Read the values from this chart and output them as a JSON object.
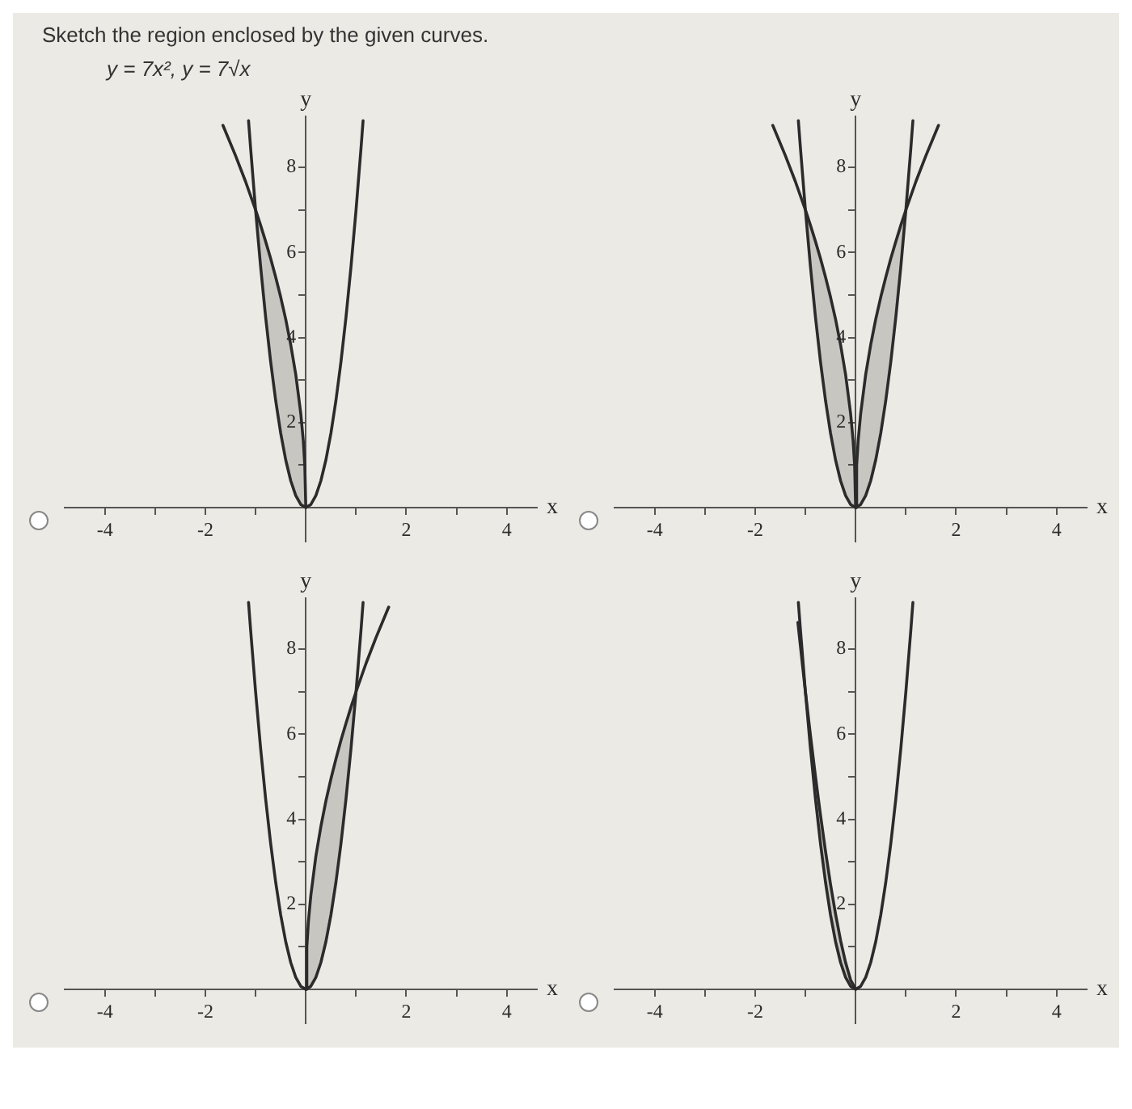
{
  "chart_data": [
    {
      "type": "line",
      "title": "Sketch the region enclosed by the given curves.",
      "subtitle": "y = 7x², y = 7√x",
      "xlabel": "x",
      "ylabel": "y",
      "xlim": [
        -4.8,
        4.6
      ],
      "ylim": [
        -0.8,
        9.2
      ],
      "xticks": [
        -4,
        {
          "value": -3,
          "label": null
        },
        -2,
        {
          "value": -1,
          "label": null
        },
        {
          "value": 1,
          "label": null
        },
        2,
        {
          "value": 3,
          "label": null
        },
        4
      ],
      "yticks": [
        {
          "value": 1,
          "label": null
        },
        2,
        {
          "value": 3,
          "label": null
        },
        4,
        {
          "value": 5,
          "label": null
        },
        6,
        {
          "value": 7,
          "label": null
        },
        8
      ],
      "series": [
        {
          "color": "#2b2b2b",
          "x": [
            -1.14,
            -1.1,
            -1,
            -0.9,
            -0.8,
            -0.7,
            -0.6,
            -0.5,
            -0.4,
            -0.3,
            -0.2,
            -0.1,
            0,
            0.1,
            0.2,
            0.3,
            0.4,
            0.5,
            0.6,
            0.7,
            0.8,
            0.9,
            1,
            1.1,
            1.14
          ],
          "values": [
            9.1,
            8.47,
            7,
            5.67,
            4.48,
            3.43,
            2.52,
            1.75,
            1.12,
            0.63,
            0.28,
            0.07,
            0,
            0.07,
            0.28,
            0.63,
            1.12,
            1.75,
            2.52,
            3.43,
            4.48,
            5.67,
            7,
            8.47,
            9.1
          ]
        },
        {
          "color": "#2b2b2b",
          "x": [
            -1.65,
            -1.4,
            -1.2,
            -1,
            -0.9,
            -0.8,
            -0.7,
            -0.6,
            -0.5,
            -0.4,
            -0.3,
            -0.2,
            -0.1,
            -0.05,
            -0.02,
            0
          ],
          "values": [
            8.99,
            8.28,
            7.67,
            7,
            6.64,
            6.26,
            5.86,
            5.42,
            4.95,
            4.43,
            3.83,
            3.13,
            2.21,
            1.57,
            0.99,
            0
          ],
          "lower": [
            null,
            null,
            null,
            7,
            5.67,
            4.48,
            3.43,
            2.52,
            1.75,
            1.12,
            0.63,
            0.28,
            0.07,
            0.02,
            0,
            0
          ],
          "upper": [
            null,
            null,
            null,
            7,
            6.64,
            6.26,
            5.86,
            5.42,
            4.95,
            4.43,
            3.83,
            3.13,
            2.21,
            1.57,
            0.99,
            0
          ]
        }
      ]
    },
    {
      "type": "line",
      "xlabel": "x",
      "ylabel": "y",
      "xlim": [
        -4.8,
        4.6
      ],
      "ylim": [
        -0.8,
        9.2
      ],
      "xticks": [
        -4,
        {
          "value": -3,
          "label": null
        },
        -2,
        {
          "value": -1,
          "label": null
        },
        {
          "value": 1,
          "label": null
        },
        2,
        {
          "value": 3,
          "label": null
        },
        4
      ],
      "yticks": [
        {
          "value": 1,
          "label": null
        },
        2,
        {
          "value": 3,
          "label": null
        },
        4,
        {
          "value": 5,
          "label": null
        },
        6,
        {
          "value": 7,
          "label": null
        },
        8
      ],
      "series": [
        {
          "color": "#2b2b2b",
          "x": [
            -1.14,
            -1.1,
            -1,
            -0.9,
            -0.8,
            -0.7,
            -0.6,
            -0.5,
            -0.4,
            -0.3,
            -0.2,
            -0.1,
            0,
            0.1,
            0.2,
            0.3,
            0.4,
            0.5,
            0.6,
            0.7,
            0.8,
            0.9,
            1,
            1.1,
            1.14
          ],
          "values": [
            9.1,
            8.47,
            7,
            5.67,
            4.48,
            3.43,
            2.52,
            1.75,
            1.12,
            0.63,
            0.28,
            0.07,
            0,
            0.07,
            0.28,
            0.63,
            1.12,
            1.75,
            2.52,
            3.43,
            4.48,
            5.67,
            7,
            8.47,
            9.1
          ]
        },
        {
          "color": "#2b2b2b",
          "x": [
            -1.65,
            -1.4,
            -1.2,
            -1,
            -0.9,
            -0.8,
            -0.7,
            -0.6,
            -0.5,
            -0.4,
            -0.3,
            -0.2,
            -0.1,
            -0.05,
            -0.02,
            0
          ],
          "values": [
            8.99,
            8.28,
            7.67,
            7,
            6.64,
            6.26,
            5.86,
            5.42,
            4.95,
            4.43,
            3.83,
            3.13,
            2.21,
            1.57,
            0.99,
            0
          ],
          "lower": [
            null,
            null,
            null,
            7,
            5.67,
            4.48,
            3.43,
            2.52,
            1.75,
            1.12,
            0.63,
            0.28,
            0.07,
            0.02,
            0,
            0
          ],
          "upper": [
            null,
            null,
            null,
            7,
            6.64,
            6.26,
            5.86,
            5.42,
            4.95,
            4.43,
            3.83,
            3.13,
            2.21,
            1.57,
            0.99,
            0
          ]
        },
        {
          "color": "#2b2b2b",
          "x": [
            0,
            0.02,
            0.05,
            0.1,
            0.2,
            0.3,
            0.4,
            0.5,
            0.6,
            0.7,
            0.8,
            0.9,
            1,
            1.2,
            1.4,
            1.65
          ],
          "values": [
            0,
            0.99,
            1.57,
            2.21,
            3.13,
            3.83,
            4.43,
            4.95,
            5.42,
            5.86,
            6.26,
            6.64,
            7,
            7.67,
            8.28,
            8.99
          ],
          "lower": [
            0,
            0,
            0.02,
            0.07,
            0.28,
            0.63,
            1.12,
            1.75,
            2.52,
            3.43,
            4.48,
            5.67,
            7,
            null,
            null,
            null
          ],
          "upper": [
            0,
            0.99,
            1.57,
            2.21,
            3.13,
            3.83,
            4.43,
            4.95,
            5.42,
            5.86,
            6.26,
            6.64,
            7,
            null,
            null,
            null
          ]
        }
      ]
    },
    {
      "type": "line",
      "xlabel": "x",
      "ylabel": "y",
      "xlim": [
        -4.8,
        4.6
      ],
      "ylim": [
        -0.8,
        9.2
      ],
      "xticks": [
        -4,
        {
          "value": -3,
          "label": null
        },
        -2,
        {
          "value": -1,
          "label": null
        },
        {
          "value": 1,
          "label": null
        },
        2,
        {
          "value": 3,
          "label": null
        },
        4
      ],
      "yticks": [
        {
          "value": 1,
          "label": null
        },
        2,
        {
          "value": 3,
          "label": null
        },
        4,
        {
          "value": 5,
          "label": null
        },
        6,
        {
          "value": 7,
          "label": null
        },
        8
      ],
      "series": [
        {
          "color": "#2b2b2b",
          "x": [
            -1.14,
            -1.1,
            -1,
            -0.9,
            -0.8,
            -0.7,
            -0.6,
            -0.5,
            -0.4,
            -0.3,
            -0.2,
            -0.1,
            0,
            0.1,
            0.2,
            0.3,
            0.4,
            0.5,
            0.6,
            0.7,
            0.8,
            0.9,
            1,
            1.1,
            1.14
          ],
          "values": [
            9.1,
            8.47,
            7,
            5.67,
            4.48,
            3.43,
            2.52,
            1.75,
            1.12,
            0.63,
            0.28,
            0.07,
            0,
            0.07,
            0.28,
            0.63,
            1.12,
            1.75,
            2.52,
            3.43,
            4.48,
            5.67,
            7,
            8.47,
            9.1
          ]
        },
        {
          "color": "#2b2b2b",
          "x": [
            0,
            0.02,
            0.05,
            0.1,
            0.2,
            0.3,
            0.4,
            0.5,
            0.6,
            0.7,
            0.8,
            0.9,
            1,
            1.2,
            1.4,
            1.65
          ],
          "values": [
            0,
            0.99,
            1.57,
            2.21,
            3.13,
            3.83,
            4.43,
            4.95,
            5.42,
            5.86,
            6.26,
            6.64,
            7,
            7.67,
            8.28,
            8.99
          ],
          "lower": [
            0,
            0,
            0.02,
            0.07,
            0.28,
            0.63,
            1.12,
            1.75,
            2.52,
            3.43,
            4.48,
            5.67,
            7,
            null,
            null,
            null
          ],
          "upper": [
            0,
            0.99,
            1.57,
            2.21,
            3.13,
            3.83,
            4.43,
            4.95,
            5.42,
            5.86,
            6.26,
            6.64,
            7,
            null,
            null,
            null
          ]
        }
      ]
    },
    {
      "type": "line",
      "xlabel": "x",
      "ylabel": "y",
      "xlim": [
        -4.8,
        4.6
      ],
      "ylim": [
        -0.8,
        9.2
      ],
      "xticks": [
        -4,
        {
          "value": -3,
          "label": null
        },
        -2,
        {
          "value": -1,
          "label": null
        },
        {
          "value": 1,
          "label": null
        },
        2,
        {
          "value": 3,
          "label": null
        },
        4
      ],
      "yticks": [
        {
          "value": 1,
          "label": null
        },
        2,
        {
          "value": 3,
          "label": null
        },
        4,
        {
          "value": 5,
          "label": null
        },
        6,
        {
          "value": 7,
          "label": null
        },
        8
      ],
      "series": [
        {
          "color": "#2b2b2b",
          "x": [
            -1.14,
            -1.1,
            -1,
            -0.9,
            -0.8,
            -0.7,
            -0.6,
            -0.5,
            -0.4,
            -0.3,
            -0.2,
            -0.1,
            0,
            0.1,
            0.2,
            0.3,
            0.4,
            0.5,
            0.6,
            0.7,
            0.8,
            0.9,
            1,
            1.1,
            1.14
          ],
          "values": [
            9.1,
            8.47,
            7,
            5.67,
            4.48,
            3.43,
            2.52,
            1.75,
            1.12,
            0.63,
            0.28,
            0.07,
            0,
            0.07,
            0.28,
            0.63,
            1.12,
            1.75,
            2.52,
            3.43,
            4.48,
            5.67,
            7,
            8.47,
            9.1
          ]
        },
        {
          "color": "#2b2b2b",
          "x": [
            -1.15,
            -1.1,
            -1,
            -0.9,
            -0.8,
            -0.7,
            -0.6,
            -0.5,
            -0.4,
            -0.3,
            -0.2,
            -0.1,
            0
          ],
          "values": [
            8.63,
            8.08,
            7,
            5.98,
            5.01,
            4.1,
            3.25,
            2.47,
            1.77,
            1.15,
            0.63,
            0.22,
            0
          ],
          "lower": [
            null,
            null,
            7,
            5.67,
            4.48,
            3.43,
            2.52,
            1.75,
            1.12,
            0.63,
            0.28,
            0.07,
            0
          ],
          "upper": [
            null,
            null,
            7,
            5.98,
            5.01,
            4.1,
            3.25,
            2.47,
            1.77,
            1.15,
            0.63,
            0.22,
            0
          ]
        }
      ]
    }
  ]
}
